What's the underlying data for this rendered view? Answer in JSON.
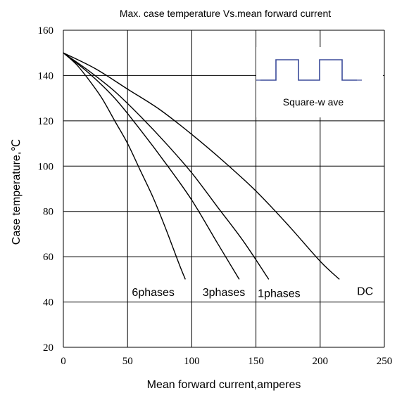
{
  "chart_data": {
    "type": "line",
    "title": "Max. case temperature  Vs.mean  forward  current",
    "xlabel": "Mean forward  current,amperes",
    "ylabel": "Case temperature,℃",
    "xlim": [
      0,
      250
    ],
    "ylim": [
      20,
      160
    ],
    "xticks": [
      0,
      50,
      100,
      150,
      200,
      250
    ],
    "yticks": [
      20,
      40,
      60,
      80,
      100,
      120,
      140,
      160
    ],
    "grid": true,
    "series": [
      {
        "name": "6phases",
        "x": [
          0,
          10,
          20,
          30,
          40,
          50,
          60,
          70,
          80,
          90,
          95
        ],
        "y": [
          150,
          145,
          138,
          130,
          120,
          110,
          98,
          86,
          72,
          57,
          50
        ],
        "label_at": [
          70,
          44.5
        ]
      },
      {
        "name": "3phases",
        "x": [
          0,
          20,
          40,
          60,
          80,
          100,
          120,
          137
        ],
        "y": [
          150,
          141,
          130,
          116,
          101,
          85,
          66,
          50
        ],
        "label_at": [
          125,
          44.5
        ]
      },
      {
        "name": "1phases",
        "x": [
          0,
          20,
          40,
          60,
          80,
          100,
          120,
          140,
          160
        ],
        "y": [
          150,
          142,
          133,
          122,
          110,
          97,
          82,
          67,
          50
        ],
        "label_at": [
          168,
          44
        ]
      },
      {
        "name": "DC",
        "x": [
          0,
          25,
          50,
          75,
          100,
          125,
          150,
          175,
          200,
          215
        ],
        "y": [
          150,
          143,
          134,
          125,
          114,
          102,
          89,
          74,
          58,
          50
        ],
        "label_at": [
          235,
          45
        ]
      }
    ],
    "inset": {
      "label": "Square-w ave"
    }
  }
}
